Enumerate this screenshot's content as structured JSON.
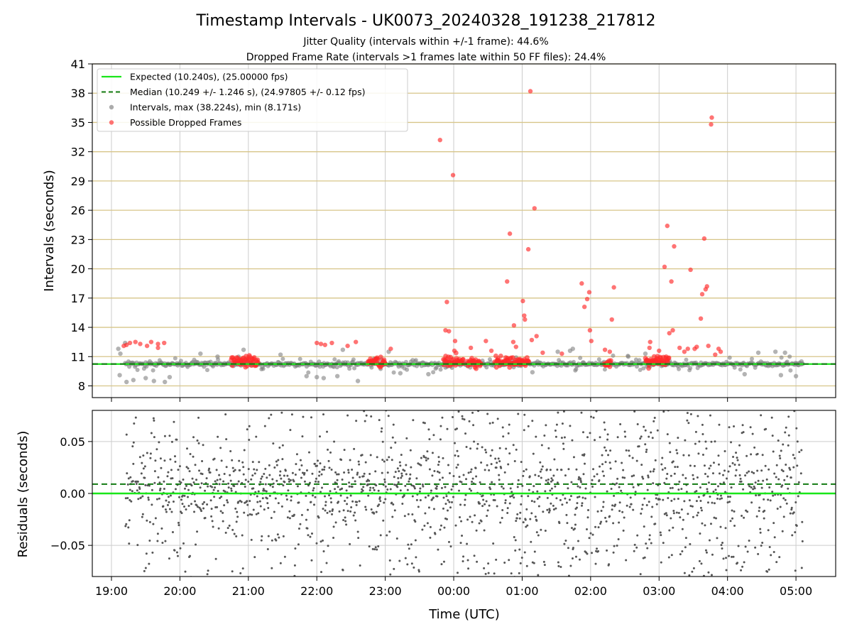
{
  "chart_data": [
    {
      "type": "scatter",
      "panel": "intervals",
      "title": "Timestamp Intervals - UK0073_20240328_191238_217812",
      "subtitle_1": "Jitter Quality (intervals within +/-1 frame): 44.6%",
      "subtitle_2": "Dropped Frame Rate (intervals >1 frames late within 50 FF files): 24.4%",
      "xlabel": "",
      "ylabel": "Intervals (seconds)",
      "x_unit": "hours since 19:00 UTC",
      "xlim": [
        -0.28,
        10.58
      ],
      "ylim": [
        6.8,
        41.0
      ],
      "yticks": [
        8,
        11,
        14,
        17,
        20,
        23,
        26,
        29,
        32,
        35,
        38,
        41
      ],
      "ytick_labels": [
        "8",
        "11",
        "14",
        "17",
        "20",
        "23",
        "26",
        "29",
        "32",
        "35",
        "38",
        "41"
      ],
      "horizontal_frame_lines": [
        8,
        11,
        14,
        17,
        20,
        23,
        26,
        29,
        32,
        35,
        38,
        41
      ],
      "expected_line": 10.24,
      "median_line": 10.249,
      "legend_position": "upper-left",
      "legend": [
        {
          "label": "Expected (10.240s), (25.00000 fps)",
          "style": "solid-line",
          "color": "#19e619"
        },
        {
          "label": "Median (10.249 +/- 1.246 s), (24.97805 +/- 0.12 fps)",
          "style": "dashed-line",
          "color": "#127a12"
        },
        {
          "label": "Intervals, max (38.224s), min (8.171s)",
          "style": "marker",
          "color": "#808080"
        },
        {
          "label": "Possible Dropped Frames",
          "style": "marker",
          "color": "#ff2a2a"
        }
      ],
      "dropped_clusters": [
        {
          "x_start": 7.8,
          "x_end": 8.15,
          "y_center": 10.6
        },
        {
          "x_start": 5.6,
          "x_end": 6.1,
          "y_center": 10.5
        },
        {
          "x_start": 5.2,
          "x_end": 5.4,
          "y_center": 10.4
        },
        {
          "x_start": 4.85,
          "x_end": 5.15,
          "y_center": 10.5
        },
        {
          "x_start": 3.75,
          "x_end": 4.0,
          "y_center": 10.45
        },
        {
          "x_start": 1.75,
          "x_end": 2.15,
          "y_center": 10.5
        },
        {
          "x_start": 7.2,
          "x_end": 7.3,
          "y_center": 10.4
        }
      ],
      "dropped_points": [
        [
          0.18,
          12.1
        ],
        [
          0.22,
          12.2
        ],
        [
          0.27,
          12.4
        ],
        [
          0.35,
          12.5
        ],
        [
          0.42,
          12.3
        ],
        [
          0.52,
          12.1
        ],
        [
          0.58,
          12.5
        ],
        [
          0.68,
          12.3
        ],
        [
          0.77,
          12.4
        ],
        [
          0.68,
          11.9
        ],
        [
          3.0,
          12.4
        ],
        [
          3.06,
          12.3
        ],
        [
          3.12,
          12.2
        ],
        [
          3.22,
          12.4
        ],
        [
          3.45,
          12.1
        ],
        [
          3.57,
          12.5
        ],
        [
          3.88,
          10.9
        ],
        [
          4.08,
          11.8
        ],
        [
          4.8,
          33.2
        ],
        [
          4.9,
          16.6
        ],
        [
          4.88,
          13.7
        ],
        [
          4.93,
          13.6
        ],
        [
          4.99,
          29.6
        ],
        [
          5.02,
          12.6
        ],
        [
          5.01,
          11.6
        ],
        [
          5.25,
          11.9
        ],
        [
          5.47,
          12.6
        ],
        [
          5.55,
          11.6
        ],
        [
          5.78,
          18.7
        ],
        [
          5.82,
          23.6
        ],
        [
          5.88,
          14.2
        ],
        [
          5.87,
          12.5
        ],
        [
          5.91,
          12.0
        ],
        [
          6.01,
          16.7
        ],
        [
          6.03,
          15.2
        ],
        [
          6.04,
          14.8
        ],
        [
          6.09,
          22.0
        ],
        [
          6.12,
          38.2
        ],
        [
          6.14,
          12.7
        ],
        [
          6.18,
          26.2
        ],
        [
          6.21,
          13.1
        ],
        [
          6.3,
          11.4
        ],
        [
          6.58,
          11.3
        ],
        [
          6.87,
          18.5
        ],
        [
          6.91,
          16.1
        ],
        [
          6.95,
          16.9
        ],
        [
          6.98,
          17.6
        ],
        [
          6.99,
          13.7
        ],
        [
          7.01,
          12.6
        ],
        [
          7.28,
          11.5
        ],
        [
          7.31,
          14.8
        ],
        [
          7.34,
          18.1
        ],
        [
          7.21,
          11.7
        ],
        [
          7.86,
          11.9
        ],
        [
          7.87,
          12.5
        ],
        [
          8.0,
          11.6
        ],
        [
          8.08,
          20.2
        ],
        [
          8.12,
          24.4
        ],
        [
          8.15,
          13.4
        ],
        [
          8.18,
          18.7
        ],
        [
          8.2,
          13.7
        ],
        [
          8.22,
          22.3
        ],
        [
          8.3,
          11.9
        ],
        [
          8.37,
          11.5
        ],
        [
          8.42,
          11.8
        ],
        [
          8.46,
          19.9
        ],
        [
          8.52,
          11.8
        ],
        [
          8.55,
          12.0
        ],
        [
          8.61,
          14.9
        ],
        [
          8.63,
          17.4
        ],
        [
          8.68,
          17.9
        ],
        [
          8.66,
          23.1
        ],
        [
          8.7,
          18.2
        ],
        [
          8.72,
          12.1
        ],
        [
          8.77,
          35.5
        ],
        [
          8.76,
          34.8
        ],
        [
          8.82,
          11.2
        ],
        [
          8.9,
          11.5
        ],
        [
          8.87,
          11.8
        ]
      ],
      "interval_outliers": [
        [
          0.22,
          8.4
        ],
        [
          0.32,
          8.6
        ],
        [
          0.5,
          8.8
        ],
        [
          0.62,
          8.5
        ],
        [
          0.78,
          8.4
        ],
        [
          0.85,
          8.9
        ],
        [
          0.12,
          9.1
        ],
        [
          0.1,
          11.8
        ],
        [
          0.13,
          11.3
        ],
        [
          0.2,
          12.4
        ],
        [
          1.3,
          11.3
        ],
        [
          1.55,
          11.0
        ],
        [
          1.93,
          11.7
        ],
        [
          2.47,
          11.2
        ],
        [
          2.85,
          9.0
        ],
        [
          3.0,
          8.9
        ],
        [
          3.1,
          8.8
        ],
        [
          3.3,
          9.0
        ],
        [
          3.38,
          11.7
        ],
        [
          3.6,
          8.5
        ],
        [
          4.05,
          11.5
        ],
        [
          4.22,
          9.3
        ],
        [
          4.63,
          9.2
        ],
        [
          6.15,
          9.4
        ],
        [
          6.52,
          11.5
        ],
        [
          6.7,
          11.6
        ],
        [
          6.74,
          11.8
        ],
        [
          7.55,
          11.0
        ],
        [
          7.8,
          11.3
        ],
        [
          9.25,
          9.2
        ],
        [
          9.45,
          11.4
        ],
        [
          9.7,
          11.5
        ],
        [
          9.78,
          9.1
        ],
        [
          9.84,
          11.4
        ],
        [
          10.0,
          9.0
        ],
        [
          10.08,
          10.5
        ]
      ]
    },
    {
      "type": "scatter",
      "panel": "residuals",
      "xlabel": "Time (UTC)",
      "ylabel": "Residuals (seconds)",
      "x_unit": "hours since 19:00 UTC",
      "xlim": [
        -0.28,
        10.58
      ],
      "ylim": [
        -0.08,
        0.08
      ],
      "yticks": [
        -0.05,
        0.0,
        0.05
      ],
      "ytick_labels": [
        "−0.05",
        "0.00",
        "0.05"
      ],
      "expected_line": 0.0,
      "median_line": 0.009,
      "xticks": [
        0,
        1,
        2,
        3,
        4,
        5,
        6,
        7,
        8,
        9,
        10
      ],
      "xtick_labels": [
        "19:00",
        "20:00",
        "21:00",
        "22:00",
        "23:00",
        "00:00",
        "01:00",
        "02:00",
        "03:00",
        "04:00",
        "05:00"
      ],
      "x_range_of_samples": [
        0.2,
        10.1
      ]
    }
  ],
  "colors": {
    "expected": "#19e619",
    "median": "#127a12",
    "interval_marker": "#808080",
    "dropped_marker": "#ff2a2a",
    "residual_marker": "#555555",
    "frame_lines": "#d7c589",
    "grid": "#cccccc"
  }
}
